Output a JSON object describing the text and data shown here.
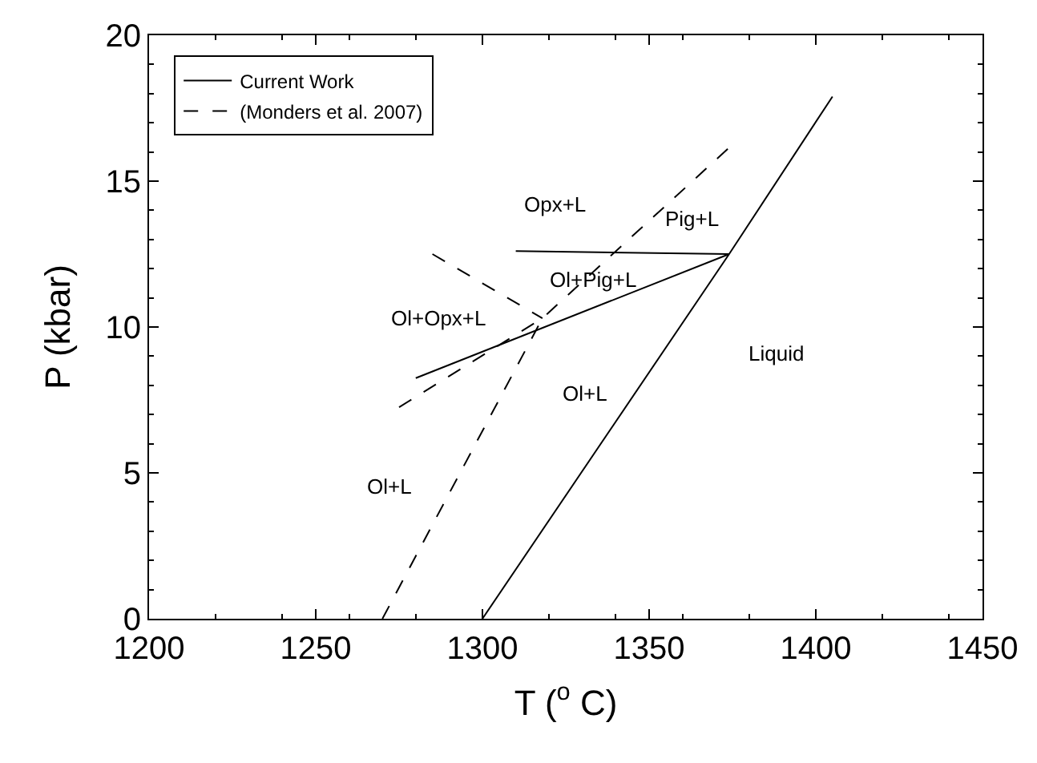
{
  "chart_data": {
    "type": "line",
    "xlabel": "T ($^{o}$ C)",
    "ylabel": "P (kbar)",
    "xlim": [
      1200,
      1450
    ],
    "xticks": [
      1200,
      1250,
      1300,
      1350,
      1400,
      1450
    ],
    "ylim": [
      0,
      20
    ],
    "yticks": [
      0,
      5,
      10,
      15,
      20
    ],
    "legend": "top left",
    "marker": "none",
    "series": [
      {
        "name": "Current Work",
        "color": "#000000",
        "line_style": "solid",
        "x": [
          1300,
          1374,
          1405,
          null,
          1310,
          1374,
          null,
          1280,
          1374
        ],
        "values": [
          0,
          12.5,
          17.9,
          null,
          12.6,
          12.5,
          null,
          8.25,
          12.5
        ]
      },
      {
        "name": "(Monders et al. 2007)",
        "color": "#000000",
        "line_style": "dashed",
        "x": [
          1270,
          1318,
          1374.5,
          null,
          1275,
          1318,
          null,
          1285,
          1318
        ],
        "values": [
          0,
          10.3,
          16.2,
          null,
          7.25,
          10.3,
          null,
          12.5,
          10.3
        ]
      }
    ],
    "annotations": [
      "Opx+L",
      "Pig+L",
      "Ol+Pig+L",
      "Ol+Opx+L",
      "Liquid",
      "Ol+L",
      "Ol+L"
    ]
  }
}
